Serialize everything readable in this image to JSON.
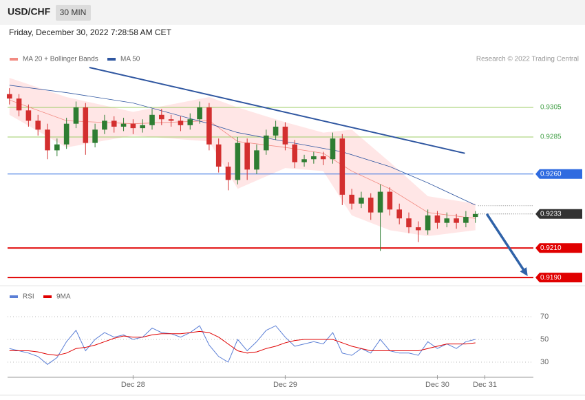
{
  "header": {
    "symbol": "USD/CHF",
    "interval": "30 MIN",
    "timestamp": "Friday, December 30, 2022 7:28:58 AM CET"
  },
  "chart_data": {
    "type": "candlestick",
    "credit": "Research © 2022 Trading Central",
    "colors": {
      "up": "#2e7d32",
      "down": "#d32f2f"
    },
    "ohlc": [
      [
        0.9314,
        0.9318,
        0.9307,
        0.9311
      ],
      [
        0.9311,
        0.9314,
        0.9299,
        0.9303
      ],
      [
        0.9303,
        0.9307,
        0.9292,
        0.9296
      ],
      [
        0.9296,
        0.93,
        0.9286,
        0.929
      ],
      [
        0.929,
        0.9294,
        0.927,
        0.9276
      ],
      [
        0.9276,
        0.9284,
        0.9272,
        0.928
      ],
      [
        0.928,
        0.9298,
        0.9277,
        0.9294
      ],
      [
        0.9294,
        0.9309,
        0.9291,
        0.9305
      ],
      [
        0.9305,
        0.9308,
        0.9273,
        0.9281
      ],
      [
        0.9281,
        0.9294,
        0.9278,
        0.929
      ],
      [
        0.929,
        0.93,
        0.9287,
        0.9296
      ],
      [
        0.9296,
        0.9299,
        0.9288,
        0.9292
      ],
      [
        0.9292,
        0.9298,
        0.9289,
        0.9294
      ],
      [
        0.9294,
        0.9297,
        0.9287,
        0.9291
      ],
      [
        0.9291,
        0.9297,
        0.9288,
        0.9293
      ],
      [
        0.9293,
        0.9304,
        0.929,
        0.93
      ],
      [
        0.93,
        0.9304,
        0.9293,
        0.9297
      ],
      [
        0.9297,
        0.93,
        0.9292,
        0.9296
      ],
      [
        0.9296,
        0.9299,
        0.9289,
        0.9293
      ],
      [
        0.9293,
        0.9301,
        0.929,
        0.9297
      ],
      [
        0.9297,
        0.9309,
        0.9294,
        0.9305
      ],
      [
        0.9305,
        0.9308,
        0.9276,
        0.928
      ],
      [
        0.928,
        0.9284,
        0.9261,
        0.9265
      ],
      [
        0.9265,
        0.9268,
        0.9249,
        0.9256
      ],
      [
        0.9256,
        0.9285,
        0.9253,
        0.9281
      ],
      [
        0.9281,
        0.9284,
        0.9256,
        0.9263
      ],
      [
        0.9263,
        0.928,
        0.926,
        0.9276
      ],
      [
        0.9276,
        0.929,
        0.9273,
        0.9286
      ],
      [
        0.9286,
        0.9296,
        0.9283,
        0.9292
      ],
      [
        0.9292,
        0.9295,
        0.9276,
        0.928
      ],
      [
        0.928,
        0.9283,
        0.9264,
        0.9268
      ],
      [
        0.9268,
        0.9273,
        0.9265,
        0.927
      ],
      [
        0.927,
        0.9275,
        0.9267,
        0.9272
      ],
      [
        0.9272,
        0.9275,
        0.9266,
        0.927
      ],
      [
        0.927,
        0.9288,
        0.9267,
        0.9284
      ],
      [
        0.9284,
        0.9287,
        0.9239,
        0.9246
      ],
      [
        0.9246,
        0.925,
        0.9236,
        0.924
      ],
      [
        0.924,
        0.9248,
        0.9237,
        0.9244
      ],
      [
        0.9244,
        0.9247,
        0.9229,
        0.9234
      ],
      [
        0.9234,
        0.9253,
        0.9208,
        0.9248
      ],
      [
        0.9248,
        0.9251,
        0.9232,
        0.9236
      ],
      [
        0.9236,
        0.924,
        0.9226,
        0.923
      ],
      [
        0.923,
        0.9234,
        0.922,
        0.9224
      ],
      [
        0.9224,
        0.9228,
        0.9214,
        0.9222
      ],
      [
        0.9222,
        0.9236,
        0.9219,
        0.9232
      ],
      [
        0.9232,
        0.9235,
        0.9223,
        0.9227
      ],
      [
        0.9227,
        0.9234,
        0.9224,
        0.923
      ],
      [
        0.923,
        0.9233,
        0.9223,
        0.9227
      ],
      [
        0.9227,
        0.9235,
        0.9224,
        0.9231
      ],
      [
        0.9231,
        0.9235,
        0.9227,
        0.9233
      ]
    ],
    "series": [
      {
        "name": "MA 20 + Bollinger Bands",
        "color": "#f28b82",
        "x": [
          0,
          6,
          13,
          21,
          24,
          29,
          33,
          36,
          40,
          44,
          49
        ],
        "values": [
          0.931,
          0.9296,
          0.9294,
          0.9296,
          0.9282,
          0.9278,
          0.9274,
          0.9262,
          0.925,
          0.9234,
          0.923
        ]
      },
      {
        "name": "MA 50",
        "color": "#2f56a0",
        "x": [
          0,
          6,
          13,
          21,
          24,
          29,
          35,
          40,
          44,
          49
        ],
        "values": [
          0.932,
          0.9315,
          0.9308,
          0.9294,
          0.9288,
          0.9282,
          0.9275,
          0.9265,
          0.9254,
          0.9239
        ]
      }
    ],
    "bollinger": {
      "color": "#ffdede",
      "x": [
        0,
        6,
        13,
        21,
        24,
        29,
        33,
        36,
        40,
        44,
        49
      ],
      "upper": [
        0.9325,
        0.9312,
        0.9302,
        0.9312,
        0.9305,
        0.9295,
        0.9288,
        0.929,
        0.9268,
        0.9245,
        0.924
      ],
      "lower": [
        0.93,
        0.9278,
        0.9286,
        0.9282,
        0.925,
        0.9264,
        0.9262,
        0.9232,
        0.9222,
        0.9218,
        0.9222
      ]
    },
    "trendline": {
      "color": "#2f56a0",
      "x": [
        8.4,
        47.9
      ],
      "values": [
        0.9332,
        0.9274
      ]
    },
    "arrow": {
      "color": "#2f62a8",
      "x": [
        50.2,
        54.5
      ],
      "values": [
        0.9233,
        0.9191
      ]
    },
    "levels": [
      {
        "value": 0.9305,
        "color": "#9ccc65",
        "badge": false
      },
      {
        "value": 0.9285,
        "color": "#9ccc65",
        "badge": false
      },
      {
        "value": {
          "value": 0.926,
          "label": "0.9260"
        },
        "color": "#2f6be0",
        "badge": true
      },
      {
        "value": {
          "value": 0.921,
          "label": "0.9210"
        },
        "color": "#e00000",
        "badge": true
      },
      {
        "value": {
          "value": 0.919,
          "label": "0.9190"
        },
        "color": "#e00000",
        "badge": true
      }
    ],
    "current": {
      "value": 0.9233,
      "color": "#333333"
    },
    "xlim": [
      -0.2,
      55.1
    ],
    "ylim": [
      0.91845,
      0.9359
    ],
    "xticks": [
      {
        "value": 13,
        "label": "Dec 28"
      },
      {
        "value": 29,
        "label": "Dec 29"
      },
      {
        "value": 45,
        "label": "Dec 30"
      },
      {
        "value": 50,
        "label": "Dec 31"
      }
    ]
  },
  "rsi_chart": {
    "type": "line",
    "ylim": [
      18.5,
      82.1
    ],
    "yticks": [
      70,
      50,
      30
    ],
    "series": [
      {
        "name": "RSI",
        "color": "#5b7fd6",
        "values": [
          42,
          40,
          38,
          35,
          28,
          34,
          48,
          58,
          40,
          50,
          56,
          52,
          54,
          50,
          52,
          60,
          56,
          55,
          52,
          56,
          62,
          45,
          35,
          30,
          50,
          40,
          48,
          58,
          62,
          52,
          44,
          46,
          48,
          46,
          56,
          38,
          36,
          42,
          38,
          50,
          40,
          38,
          38,
          36,
          48,
          42,
          46,
          42,
          48,
          50
        ]
      },
      {
        "name": "9MA",
        "color": "#e00000",
        "values": [
          40,
          40,
          40,
          39,
          37,
          36,
          38,
          42,
          43,
          45,
          48,
          51,
          53,
          52,
          52,
          54,
          55,
          55,
          55,
          56,
          57,
          56,
          52,
          46,
          40,
          38,
          39,
          42,
          44,
          47,
          49,
          50,
          50,
          50,
          50,
          47,
          44,
          42,
          40,
          40,
          40,
          40,
          40,
          40,
          42,
          44,
          46,
          46,
          46,
          47
        ]
      }
    ]
  }
}
